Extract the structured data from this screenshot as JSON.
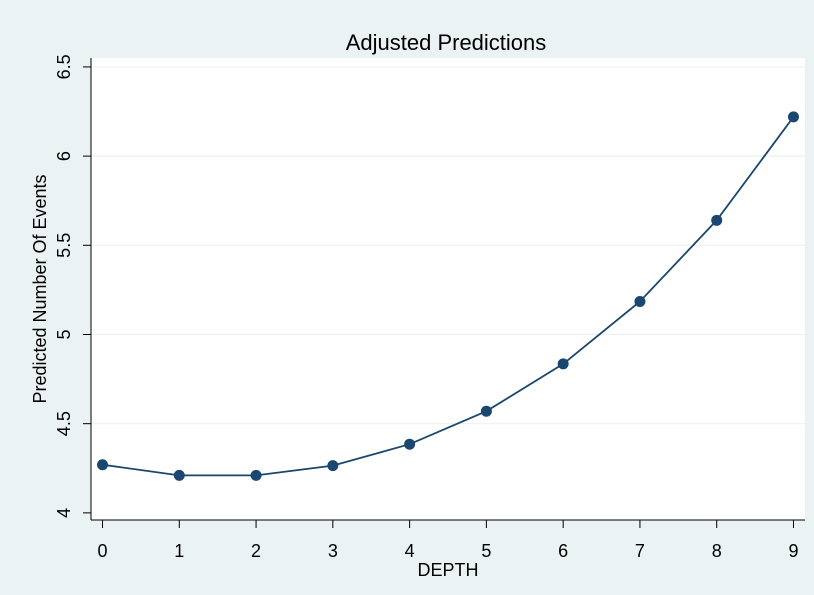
{
  "chart_data": {
    "type": "line",
    "title": "Adjusted Predictions",
    "xlabel": "DEPTH",
    "ylabel": "Predicted Number Of Events",
    "x": [
      0,
      1,
      2,
      3,
      4,
      5,
      6,
      7,
      8,
      9
    ],
    "series": [
      {
        "values": [
          4.27,
          4.21,
          4.21,
          4.265,
          4.385,
          4.57,
          4.835,
          5.185,
          5.64,
          6.22
        ]
      }
    ],
    "xlim": [
      -0.15,
      9.15
    ],
    "ylim": [
      3.96,
      6.55
    ],
    "xticks": [
      0,
      1,
      2,
      3,
      4,
      5,
      6,
      7,
      8,
      9
    ],
    "yticks": [
      4,
      4.5,
      5,
      5.5,
      6,
      6.5
    ],
    "ytick_labels": [
      "4",
      "4.5",
      "5",
      "5.5",
      "6",
      "6.5"
    ],
    "grid": true,
    "legend": "none",
    "colors": {
      "background": "#eaf2f3",
      "plot_background": "#ffffff",
      "line": "#1a476f",
      "title": "#1e3f5e",
      "grid": "#eaf2f3"
    }
  }
}
